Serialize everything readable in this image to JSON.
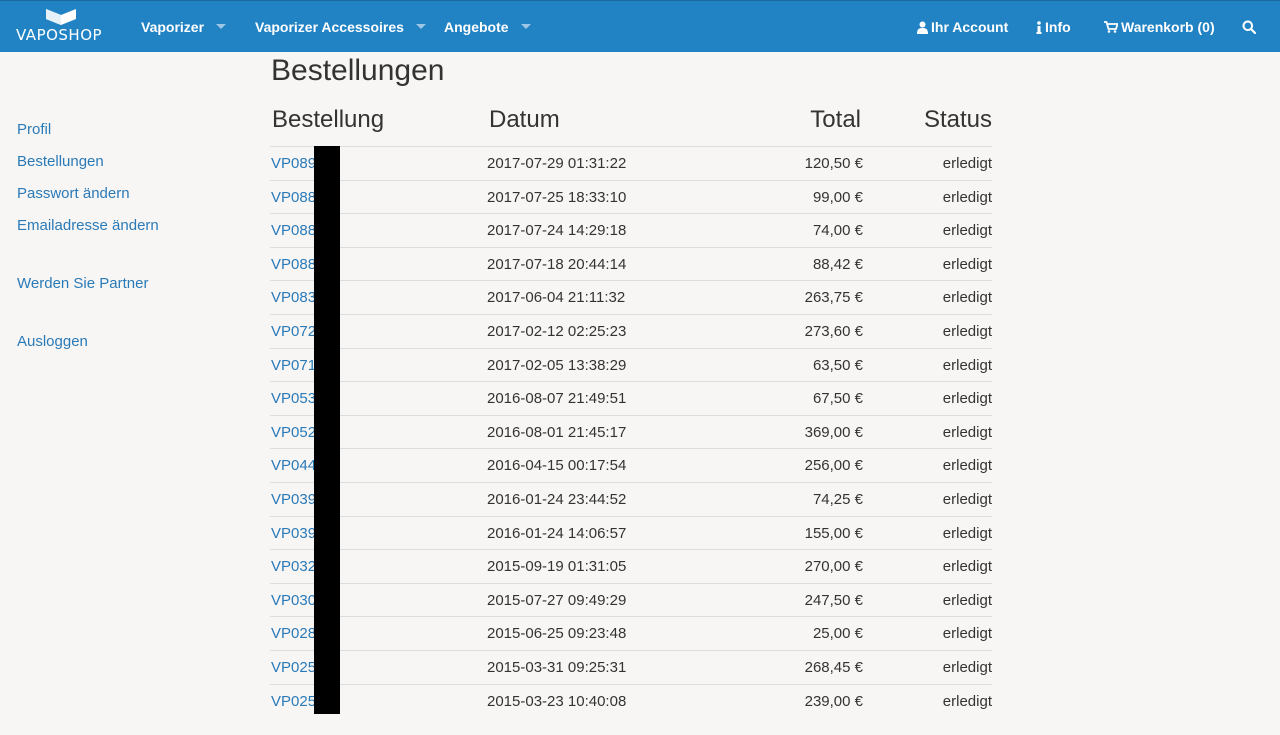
{
  "brand": {
    "name": "VAPOSHOP"
  },
  "nav": {
    "items": [
      {
        "label": "Vaporizer"
      },
      {
        "label": "Vaporizer Accessoires"
      },
      {
        "label": "Angebote"
      }
    ],
    "account": "Ihr Account",
    "info": "Info",
    "cart": "Warenkorb (0)"
  },
  "sidebar": {
    "profile": "Profil",
    "orders": "Bestellungen",
    "password": "Passwort ändern",
    "email": "Emailadresse ändern",
    "partner": "Werden Sie Partner",
    "logout": "Ausloggen"
  },
  "main": {
    "title": "Bestellungen",
    "columns": [
      "Bestellung",
      "Datum",
      "Total",
      "Status"
    ],
    "orders": [
      {
        "id": "VP089",
        "date": "2017-07-29 01:31:22",
        "total": "120,50 €",
        "status": "erledigt"
      },
      {
        "id": "VP088",
        "date": "2017-07-25 18:33:10",
        "total": "99,00 €",
        "status": "erledigt"
      },
      {
        "id": "VP088",
        "date": "2017-07-24 14:29:18",
        "total": "74,00 €",
        "status": "erledigt"
      },
      {
        "id": "VP088",
        "date": "2017-07-18 20:44:14",
        "total": "88,42 €",
        "status": "erledigt"
      },
      {
        "id": "VP083",
        "date": "2017-06-04 21:11:32",
        "total": "263,75 €",
        "status": "erledigt"
      },
      {
        "id": "VP072",
        "date": "2017-02-12 02:25:23",
        "total": "273,60 €",
        "status": "erledigt"
      },
      {
        "id": "VP071",
        "date": "2017-02-05 13:38:29",
        "total": "63,50 €",
        "status": "erledigt"
      },
      {
        "id": "VP053",
        "date": "2016-08-07 21:49:51",
        "total": "67,50 €",
        "status": "erledigt"
      },
      {
        "id": "VP052",
        "date": "2016-08-01 21:45:17",
        "total": "369,00 €",
        "status": "erledigt"
      },
      {
        "id": "VP044",
        "date": "2016-04-15 00:17:54",
        "total": "256,00 €",
        "status": "erledigt"
      },
      {
        "id": "VP039",
        "date": "2016-01-24 23:44:52",
        "total": "74,25 €",
        "status": "erledigt"
      },
      {
        "id": "VP039",
        "date": "2016-01-24 14:06:57",
        "total": "155,00 €",
        "status": "erledigt"
      },
      {
        "id": "VP032",
        "date": "2015-09-19 01:31:05",
        "total": "270,00 €",
        "status": "erledigt"
      },
      {
        "id": "VP030",
        "date": "2015-07-27 09:49:29",
        "total": "247,50 €",
        "status": "erledigt"
      },
      {
        "id": "VP028",
        "date": "2015-06-25 09:23:48",
        "total": "25,00 €",
        "status": "erledigt"
      },
      {
        "id": "VP025",
        "date": "2015-03-31 09:25:31",
        "total": "268,45 €",
        "status": "erledigt"
      },
      {
        "id": "VP025",
        "date": "2015-03-23 10:40:08",
        "total": "239,00 €",
        "status": "erledigt"
      }
    ]
  },
  "colors": {
    "navbar": "#2283c4",
    "link": "#2a7ab8",
    "background": "#f7f6f4"
  }
}
